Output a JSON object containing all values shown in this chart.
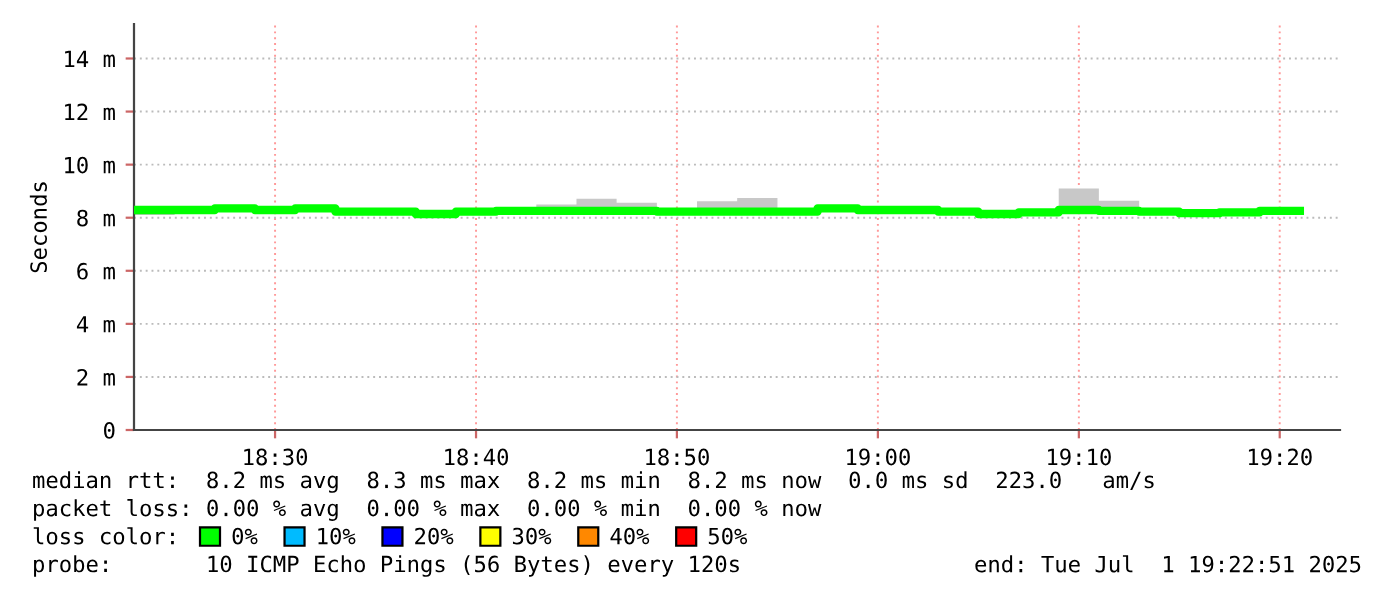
{
  "chart_data": {
    "type": "step",
    "ylabel": "Seconds",
    "legend_title": "loss color:",
    "x": [
      18.3833,
      18.4167,
      18.45,
      18.4833,
      18.5167,
      18.55,
      18.5833,
      18.6167,
      18.65,
      18.6833,
      18.7167,
      18.75,
      18.7833,
      18.8167,
      18.85,
      18.8833,
      18.9167,
      18.95,
      18.9833,
      19.0167,
      19.05,
      19.0833,
      19.1167,
      19.15,
      19.1833,
      19.2167,
      19.25,
      19.2833,
      19.3167,
      19.35
    ],
    "series": [
      {
        "name": "0%",
        "color": "#00ff00",
        "values": [
          8.29,
          8.29,
          8.35,
          8.29,
          8.35,
          8.23,
          8.23,
          8.14,
          8.23,
          8.26,
          8.26,
          8.26,
          8.26,
          8.23,
          8.23,
          8.23,
          8.23,
          8.35,
          8.29,
          8.29,
          8.23,
          8.14,
          8.2,
          8.29,
          8.26,
          8.23,
          8.17,
          8.2,
          8.26,
          8.26
        ],
        "lower": [
          8.1,
          8.24,
          8.3,
          8.24,
          8.3,
          8.18,
          8.18,
          8.08,
          8.18,
          8.21,
          8.21,
          8.21,
          8.1,
          8.18,
          8.18,
          8.18,
          8.18,
          8.3,
          8.24,
          8.24,
          8.18,
          8.09,
          8.15,
          8.24,
          8.21,
          8.18,
          8.12,
          8.15,
          8.21,
          8.21
        ],
        "upper": [
          8.34,
          8.34,
          8.4,
          8.34,
          8.45,
          8.28,
          8.28,
          8.19,
          8.28,
          8.31,
          8.5,
          8.71,
          8.56,
          8.28,
          8.62,
          8.74,
          8.28,
          8.4,
          8.34,
          8.34,
          8.28,
          8.19,
          8.25,
          9.1,
          8.64,
          8.28,
          8.22,
          8.25,
          8.31,
          8.31
        ]
      },
      {
        "name": "10%",
        "color": "#00bbff",
        "values": [
          null,
          null,
          null,
          null,
          null,
          null,
          null,
          null,
          null,
          null,
          null,
          null,
          null,
          null,
          null,
          null,
          null,
          null,
          null,
          null,
          null,
          null,
          null,
          null,
          null,
          null,
          null,
          null,
          null,
          null
        ]
      },
      {
        "name": "20%",
        "color": "#0000ff",
        "values": [
          null,
          null,
          null,
          null,
          null,
          null,
          null,
          null,
          null,
          null,
          null,
          null,
          null,
          null,
          null,
          null,
          null,
          null,
          null,
          null,
          null,
          null,
          null,
          null,
          null,
          null,
          null,
          null,
          null,
          null
        ]
      },
      {
        "name": "30%",
        "color": "#ffff00",
        "values": [
          null,
          null,
          null,
          null,
          null,
          null,
          null,
          null,
          null,
          null,
          null,
          null,
          null,
          null,
          null,
          null,
          null,
          null,
          null,
          null,
          null,
          null,
          null,
          null,
          null,
          null,
          null,
          null,
          null,
          null
        ]
      },
      {
        "name": "40%",
        "color": "#ff8800",
        "values": [
          null,
          null,
          null,
          null,
          null,
          null,
          null,
          null,
          null,
          null,
          null,
          null,
          null,
          null,
          null,
          null,
          null,
          null,
          null,
          null,
          null,
          null,
          null,
          null,
          null,
          null,
          null,
          null,
          null,
          null
        ]
      },
      {
        "name": "50%",
        "color": "#ff0000",
        "values": [
          null,
          null,
          null,
          null,
          null,
          null,
          null,
          null,
          null,
          null,
          null,
          null,
          null,
          null,
          null,
          null,
          null,
          null,
          null,
          null,
          null,
          null,
          null,
          null,
          null,
          null,
          null,
          null,
          null,
          null
        ]
      }
    ],
    "xlim": [
      18.383,
      19.3833
    ],
    "xticks": [
      {
        "value": 18.5,
        "label": "18:30"
      },
      {
        "value": 18.6667,
        "label": "18:40"
      },
      {
        "value": 18.8333,
        "label": "18:50"
      },
      {
        "value": 19,
        "label": "19:00"
      },
      {
        "value": 19.1667,
        "label": "19:10"
      },
      {
        "value": 19.3333,
        "label": "19:20"
      }
    ],
    "ylim": [
      0,
      15.3
    ],
    "yticks": [
      0,
      {
        "value": 2,
        "label": "2 m"
      },
      {
        "value": 4,
        "label": "4 m"
      },
      {
        "value": 6,
        "label": "6 m"
      },
      {
        "value": 8,
        "label": "8 m"
      },
      {
        "value": 10,
        "label": "10 m"
      },
      {
        "value": 12,
        "label": "12 m"
      },
      {
        "value": 14,
        "label": "14 m"
      }
    ],
    "grid": true,
    "legend": "bottom",
    "annotations": [
      "median rtt:  8.2 ms avg  8.3 ms max  8.2 ms min  8.2 ms now  0.0 ms sd  223.0   am/s",
      "packet loss: 0.00 % avg  0.00 % max  0.00 % min  0.00 % now",
      "probe:       10 ICMP Echo Pings (56 Bytes) every 120s",
      "end: Tue Jul  1 19:22:51 2025"
    ]
  }
}
